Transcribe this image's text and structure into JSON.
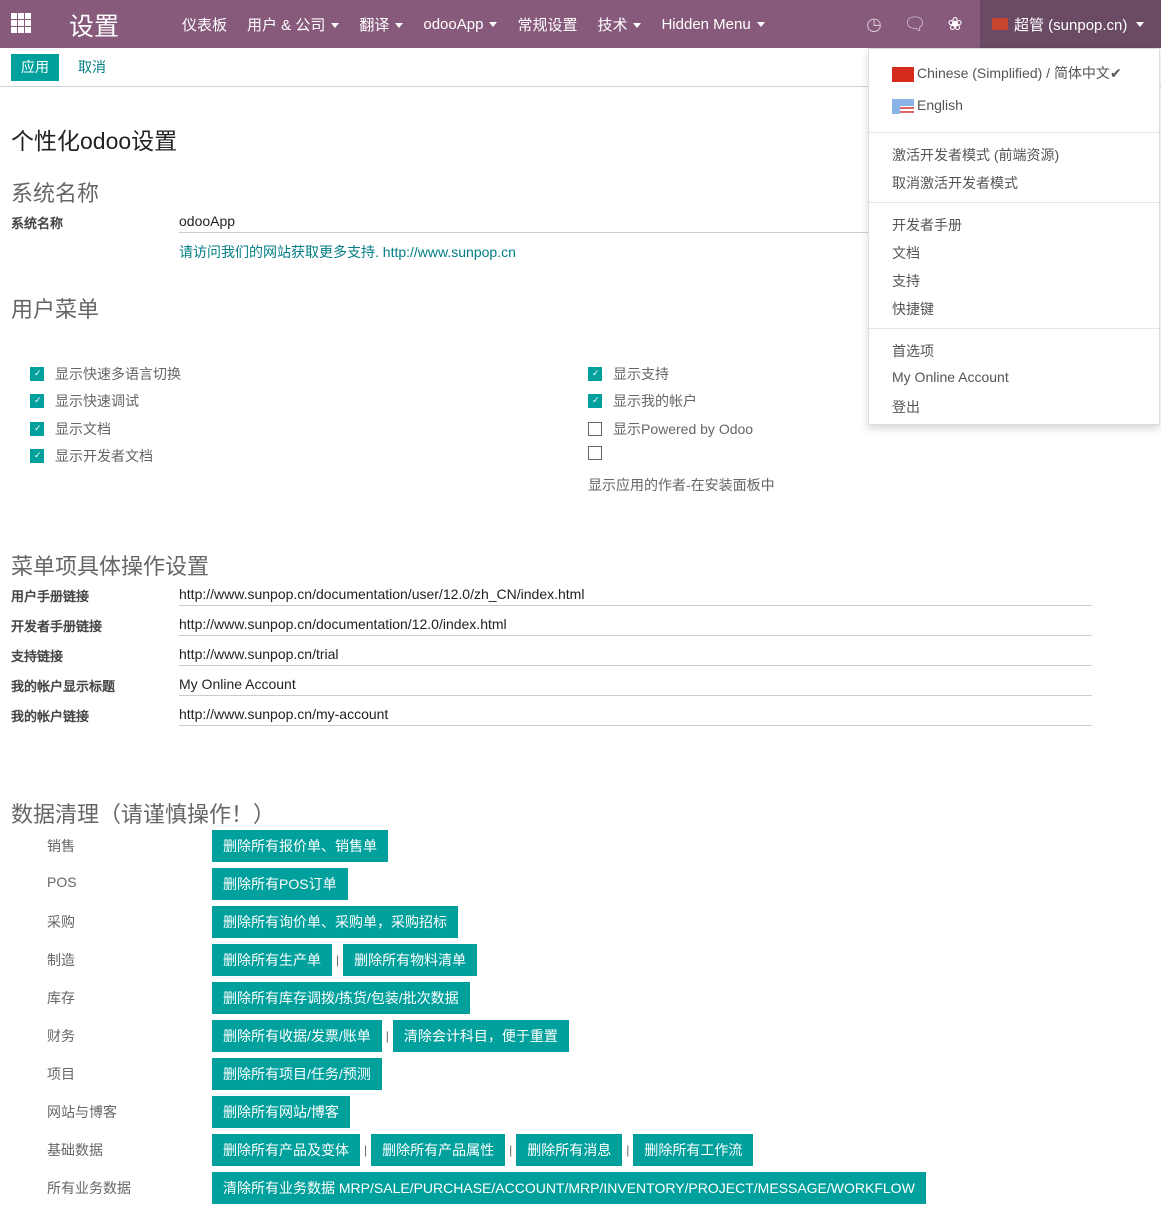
{
  "navbar": {
    "brand": "设置",
    "menu": [
      {
        "label": "仪表板",
        "caret": false
      },
      {
        "label": "用户 & 公司",
        "caret": true
      },
      {
        "label": "翻译",
        "caret": true
      },
      {
        "label": "odooApp",
        "caret": true
      },
      {
        "label": "常规设置",
        "caret": false
      },
      {
        "label": "技术",
        "caret": true
      },
      {
        "label": "Hidden Menu",
        "caret": true
      }
    ],
    "user": "超管 (sunpop.cn)",
    "icons": [
      "clock-icon",
      "chat-icon",
      "bug-icon"
    ]
  },
  "control": {
    "apply": "应用",
    "cancel": "取消"
  },
  "title": "个性化odoo设置",
  "system": {
    "heading": "系统名称",
    "label": "系统名称",
    "value": "odooApp",
    "hint": "请访问我们的网站获取更多支持. http://www.sunpop.cn"
  },
  "usermenu": {
    "heading": "用户菜单",
    "left": [
      {
        "label": "显示快速多语言切换",
        "checked": true
      },
      {
        "label": "显示快速调试",
        "checked": true
      },
      {
        "label": "显示文档",
        "checked": true
      },
      {
        "label": "显示开发者文档",
        "checked": true
      }
    ],
    "right": [
      {
        "label": "显示支持",
        "checked": true
      },
      {
        "label": "显示我的帐户",
        "checked": true
      },
      {
        "label": "显示Powered by Odoo",
        "checked": false
      },
      {
        "label": "",
        "checked": false
      }
    ],
    "extra": "显示应用的作者-在安装面板中"
  },
  "links": {
    "heading": "菜单项具体操作设置",
    "rows": [
      {
        "label": "用户手册链接",
        "value": "http://www.sunpop.cn/documentation/user/12.0/zh_CN/index.html"
      },
      {
        "label": "开发者手册链接",
        "value": "http://www.sunpop.cn/documentation/12.0/index.html"
      },
      {
        "label": "支持链接",
        "value": "http://www.sunpop.cn/trial"
      },
      {
        "label": "我的帐户显示标题",
        "value": "My Online Account"
      },
      {
        "label": "我的帐户链接",
        "value": "http://www.sunpop.cn/my-account"
      }
    ]
  },
  "cleanup": {
    "heading": "数据清理（请谨慎操作！）",
    "rows": [
      {
        "label": "销售",
        "buttons": [
          "删除所有报价单、销售单"
        ]
      },
      {
        "label": "POS",
        "buttons": [
          "删除所有POS订单"
        ]
      },
      {
        "label": "采购",
        "buttons": [
          "删除所有询价单、采购单，采购招标"
        ]
      },
      {
        "label": "制造",
        "buttons": [
          "删除所有生产单",
          "删除所有物料清单"
        ]
      },
      {
        "label": "库存",
        "buttons": [
          "删除所有库存调拨/拣货/包装/批次数据"
        ]
      },
      {
        "label": "财务",
        "buttons": [
          "删除所有收据/发票/账单",
          "清除会计科目，便于重置"
        ]
      },
      {
        "label": "项目",
        "buttons": [
          "删除所有项目/任务/预测"
        ]
      },
      {
        "label": "网站与博客",
        "buttons": [
          "删除所有网站/博客"
        ]
      },
      {
        "label": "基础数据",
        "buttons": [
          "删除所有产品及变体",
          "删除所有产品属性",
          "删除所有消息",
          "删除所有工作流"
        ]
      },
      {
        "label": "所有业务数据",
        "buttons": [
          "清除所有业务数据 MRP/SALE/PURCHASE/ACCOUNT/MRP/INVENTORY/PROJECT/MESSAGE/WORKFLOW"
        ]
      }
    ]
  },
  "dropdown": {
    "languages": [
      {
        "label": "Chinese (Simplified) / 简体中文",
        "active": true
      },
      {
        "label": "English",
        "active": false
      }
    ],
    "groups": [
      [
        "激活开发者模式 (前端资源)",
        "取消激活开发者模式"
      ],
      [
        "开发者手册",
        "文档",
        "支持",
        "快捷键"
      ],
      [
        "首选项",
        "My Online Account",
        "登出"
      ]
    ]
  },
  "colors": {
    "navbar": "#875a7b",
    "accent": "#00a09d"
  }
}
